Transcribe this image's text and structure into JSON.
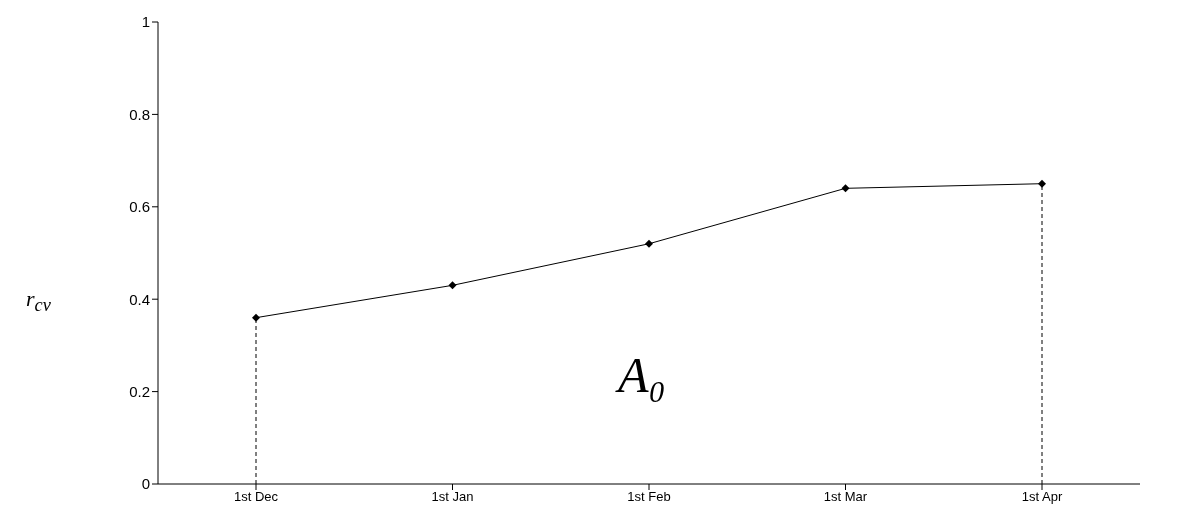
{
  "chart_data": {
    "type": "line",
    "categories": [
      "1st Dec",
      "1st Jan",
      "1st Feb",
      "1st Mar",
      "1st Apr"
    ],
    "series": [
      {
        "color": "#000000",
        "values": [
          0.36,
          0.43,
          0.52,
          0.64,
          0.65
        ]
      }
    ],
    "ylabel": "r$_{cv}$",
    "ylim": [
      0,
      1
    ],
    "yticks": [
      0,
      0.2,
      0.4,
      0.6,
      0.8,
      1
    ],
    "grid": false,
    "marker": "diamond",
    "line_style": "solid",
    "ref_lines": [
      {
        "axis": "x",
        "value": "1st Dec",
        "line_style": "dashed",
        "color": "#000000"
      },
      {
        "axis": "x",
        "value": "1st Apr",
        "line_style": "dashed",
        "color": "#000000"
      }
    ],
    "annotations": [
      "A₀"
    ]
  }
}
